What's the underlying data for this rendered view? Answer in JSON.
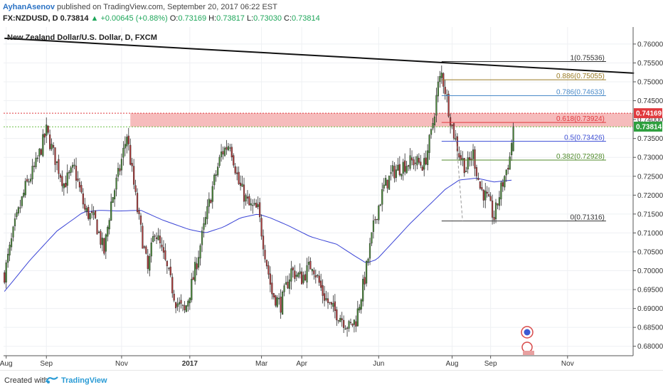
{
  "header": {
    "author": "AyhanAsenov",
    "published_text": "published on TradingView.com, September 20, 2017 06:22 EST",
    "symbol": "FX:NZDUSD, D",
    "price": "0.73814",
    "change_arrow": "▲",
    "change": "+0.00645 (+0.88%)",
    "o_label": "O:",
    "o_value": "0.73169",
    "h_label": "H:",
    "h_value": "0.73817",
    "l_label": "L:",
    "l_value": "0.73030",
    "c_label": "C:",
    "c_value": "0.73814"
  },
  "footer": {
    "created_with": "Created with",
    "brand": "TradingView",
    "logo_icon": "tradingview-logo-icon"
  },
  "chart_data": {
    "type": "candlestick",
    "title": "New Zealand Dollar/U.S. Dollar, D, FXCM",
    "ylim": [
      0.6775,
      0.7645
    ],
    "y_ticks": [
      0.76,
      0.755,
      0.75,
      0.745,
      0.74,
      0.735,
      0.73,
      0.725,
      0.72,
      0.715,
      0.71,
      0.705,
      0.7,
      0.695,
      0.69,
      0.685,
      0.68
    ],
    "y_tick_labels": [
      "0.76000",
      "0.75500",
      "0.75000",
      "0.74500",
      "0.74000",
      "0.73500",
      "0.73000",
      "0.72500",
      "0.72000",
      "0.71500",
      "0.71000",
      "0.70500",
      "0.70000",
      "0.69500",
      "0.69000",
      "0.68500",
      "0.68000"
    ],
    "x_labels": [
      {
        "label": "Aug",
        "bar": 1
      },
      {
        "label": "Sep",
        "bar": 24
      },
      {
        "label": "Nov",
        "bar": 67
      },
      {
        "label": "2017",
        "bar": 106
      },
      {
        "label": "Mar",
        "bar": 147
      },
      {
        "label": "Apr",
        "bar": 170
      },
      {
        "label": "Jun",
        "bar": 214
      },
      {
        "label": "Aug",
        "bar": 256
      },
      {
        "label": "Sep",
        "bar": 278
      },
      {
        "label": "Nov",
        "bar": 322
      }
    ],
    "bar_count": 360,
    "price_anchors": [
      [
        0,
        0.699
      ],
      [
        6,
        0.712
      ],
      [
        12,
        0.722
      ],
      [
        18,
        0.728
      ],
      [
        24,
        0.737
      ],
      [
        28,
        0.731
      ],
      [
        34,
        0.723
      ],
      [
        40,
        0.727
      ],
      [
        46,
        0.716
      ],
      [
        52,
        0.713
      ],
      [
        57,
        0.705
      ],
      [
        61,
        0.718
      ],
      [
        66,
        0.727
      ],
      [
        70,
        0.736
      ],
      [
        76,
        0.716
      ],
      [
        82,
        0.7
      ],
      [
        86,
        0.711
      ],
      [
        92,
        0.702
      ],
      [
        98,
        0.692
      ],
      [
        103,
        0.689
      ],
      [
        108,
        0.698
      ],
      [
        113,
        0.709
      ],
      [
        119,
        0.722
      ],
      [
        124,
        0.731
      ],
      [
        129,
        0.734
      ],
      [
        134,
        0.723
      ],
      [
        140,
        0.717
      ],
      [
        145,
        0.716
      ],
      [
        150,
        0.702
      ],
      [
        153,
        0.694
      ],
      [
        158,
        0.691
      ],
      [
        164,
        0.7
      ],
      [
        170,
        0.698
      ],
      [
        176,
        0.702
      ],
      [
        182,
        0.694
      ],
      [
        187,
        0.69
      ],
      [
        192,
        0.688
      ],
      [
        197,
        0.685
      ],
      [
        201,
        0.687
      ],
      [
        206,
        0.698
      ],
      [
        212,
        0.714
      ],
      [
        217,
        0.722
      ],
      [
        222,
        0.726
      ],
      [
        228,
        0.728
      ],
      [
        234,
        0.729
      ],
      [
        240,
        0.728
      ],
      [
        244,
        0.736
      ],
      [
        248,
        0.749
      ],
      [
        250,
        0.752
      ],
      [
        252,
        0.748
      ],
      [
        256,
        0.738
      ],
      [
        260,
        0.731
      ],
      [
        264,
        0.727
      ],
      [
        268,
        0.731
      ],
      [
        272,
        0.722
      ],
      [
        276,
        0.719
      ],
      [
        280,
        0.714
      ],
      [
        283,
        0.72
      ],
      [
        286,
        0.725
      ],
      [
        289,
        0.73
      ],
      [
        291,
        0.738
      ]
    ],
    "moving_average": [
      [
        0,
        0.6945
      ],
      [
        15,
        0.703
      ],
      [
        30,
        0.7105
      ],
      [
        45,
        0.7155
      ],
      [
        55,
        0.716
      ],
      [
        65,
        0.7158
      ],
      [
        78,
        0.716
      ],
      [
        90,
        0.7135
      ],
      [
        105,
        0.711
      ],
      [
        115,
        0.71
      ],
      [
        125,
        0.7115
      ],
      [
        135,
        0.714
      ],
      [
        145,
        0.715
      ],
      [
        152,
        0.714
      ],
      [
        162,
        0.712
      ],
      [
        175,
        0.709
      ],
      [
        190,
        0.707
      ],
      [
        200,
        0.704
      ],
      [
        207,
        0.702
      ],
      [
        213,
        0.703
      ],
      [
        222,
        0.7075
      ],
      [
        232,
        0.7125
      ],
      [
        242,
        0.717
      ],
      [
        252,
        0.7215
      ],
      [
        260,
        0.724
      ],
      [
        270,
        0.7245
      ],
      [
        280,
        0.7235
      ],
      [
        291,
        0.724
      ]
    ],
    "resistance_zone": {
      "bar_from": 72,
      "bar_to": 360,
      "price_high": 0.7417,
      "price_low": 0.7381,
      "color": "#f4b0b0"
    },
    "dotted_lines": [
      {
        "price": 0.7417,
        "color": "#e0393e"
      },
      {
        "price": 0.7381,
        "color": "#6bbf47"
      }
    ],
    "trendline": {
      "x1": 0,
      "y1": 0.7615,
      "x2": 360,
      "y2": 0.7523
    },
    "fibonacci": [
      {
        "label": "1(0.75536)",
        "price": 0.75536,
        "color": "#333333"
      },
      {
        "label": "0.886(0.75055)",
        "price": 0.75055,
        "color": "#9a7b24"
      },
      {
        "label": "0.786(0.74633)",
        "price": 0.74633,
        "color": "#4a8ac8"
      },
      {
        "label": "0.618(0.73924)",
        "price": 0.73924,
        "color": "#e0393e"
      },
      {
        "label": "0.5(0.73426)",
        "price": 0.73426,
        "color": "#3b4cd4"
      },
      {
        "label": "0.382(0.72928)",
        "price": 0.72928,
        "color": "#4f8a2a"
      },
      {
        "label": "0(0.71316)",
        "price": 0.71316,
        "color": "#333333"
      }
    ],
    "fib_bar_from": 250,
    "fib_bar_to": 344,
    "fib_dash": {
      "x1": 258,
      "y1": 0.737,
      "x2": 262,
      "y2": 0.713
    },
    "price_badges": [
      {
        "text": "0.74169",
        "price": 0.74169,
        "color": "#e0393e"
      },
      {
        "text": "0.73814",
        "price": 0.73814,
        "color": "#2e9f3e"
      }
    ],
    "colors": {
      "up": "#4a8a3a",
      "down": "#b03a3a",
      "ma": "#3a44d6",
      "grid": "#eef0f3"
    }
  }
}
